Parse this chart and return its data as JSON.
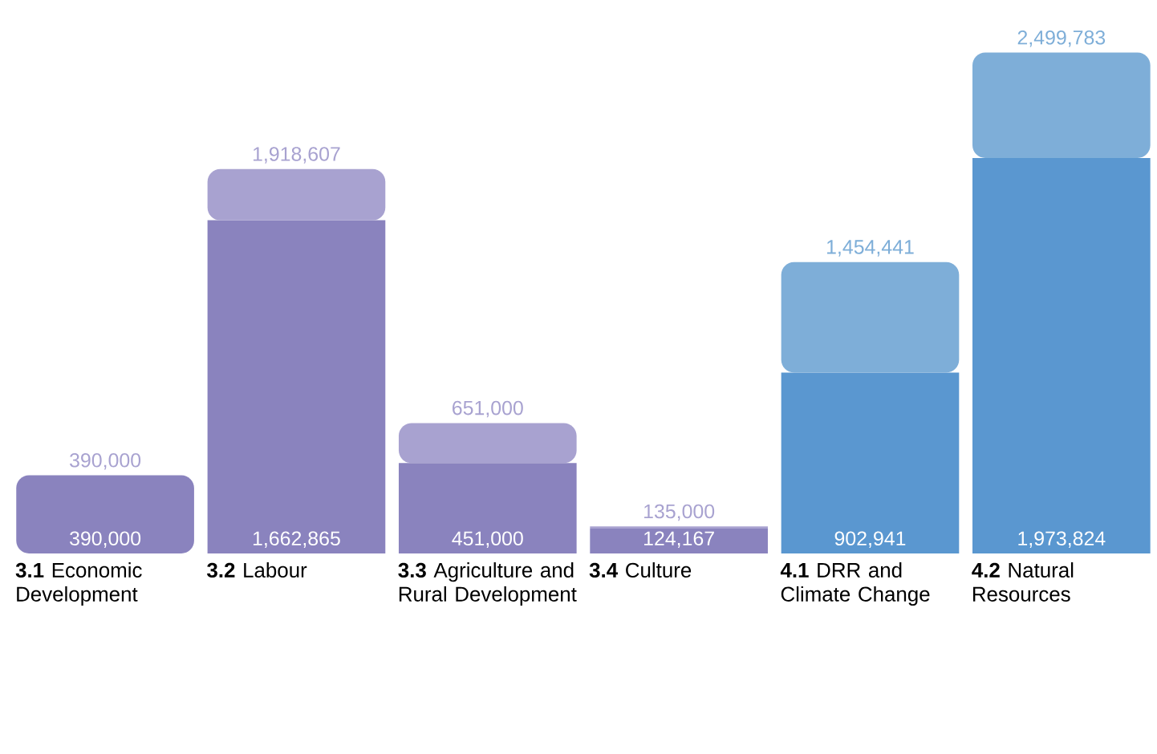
{
  "chart_data": {
    "type": "bar",
    "stacked": true,
    "categories": [
      "**3.1** Economic Development",
      "**3.2** Labour",
      "**3.3** Agriculture and Rural Development",
      "**3.4** Culture",
      "**4.1** DRR and Climate Change",
      "**4.2** Natural Resources"
    ],
    "series": [
      {
        "colors": [
          "#8a83be",
          "#8a83be",
          "#8a83be",
          "#8a83be",
          "#5a97d0",
          "#5a97d0"
        ],
        "values": [
          390000,
          1662865,
          451000,
          124167,
          902941,
          1973824
        ],
        "value_labels": [
          "390,000",
          "1,662,865",
          "451,000",
          "124,167",
          "902,941",
          "1,973,824"
        ]
      },
      {
        "colors": [
          "#a8a2d0",
          "#a8a2d0",
          "#a8a2d0",
          "#a8a2d0",
          "#7eaed8",
          "#7eaed8"
        ],
        "values": [
          0,
          255742,
          200000,
          10833,
          551500,
          525959
        ]
      }
    ],
    "totals": [
      "390,000",
      "1,918,607",
      "651,000",
      "135,000",
      "1,454,441",
      "2,499,783"
    ]
  }
}
